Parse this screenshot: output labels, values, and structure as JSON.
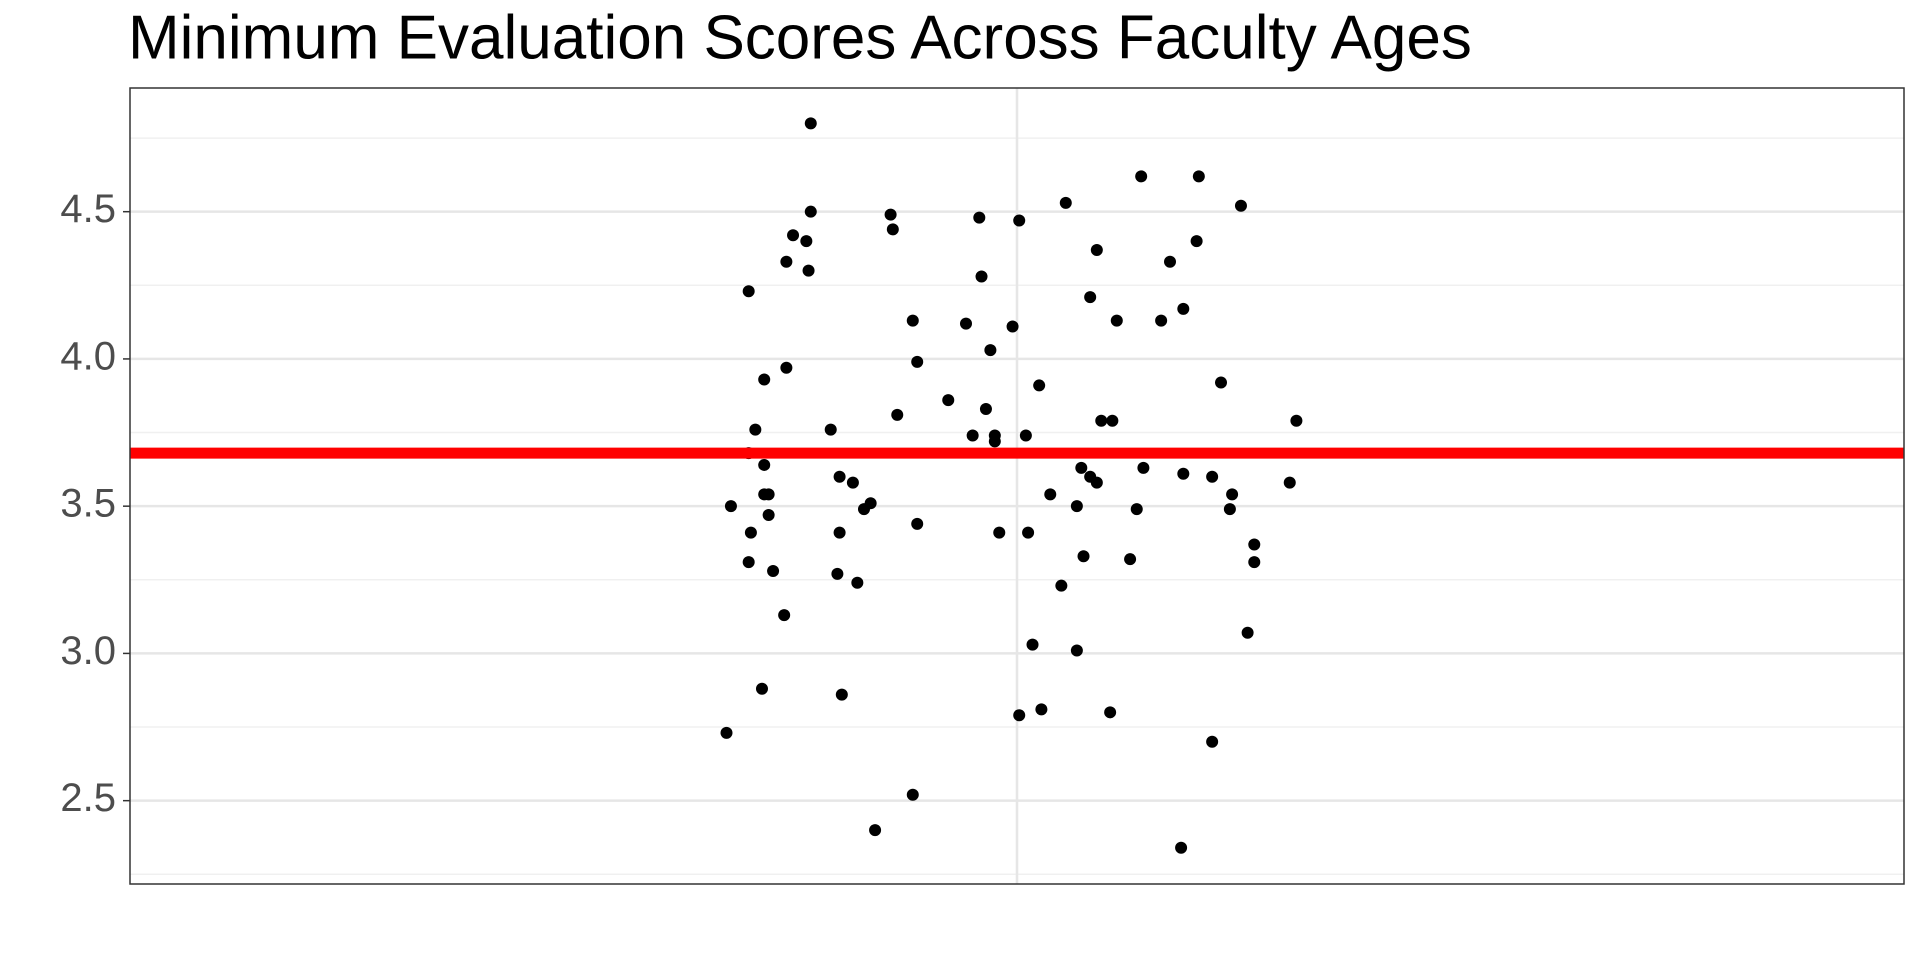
{
  "chart_data": {
    "type": "scatter",
    "title": "Minimum Evaluation Scores Across Faculty Ages",
    "x": [
      0.907,
      0.869,
      0.879,
      0.882,
      0.886,
      0.879,
      0.886,
      0.871,
      0.88,
      0.879,
      0.886,
      0.888,
      0.888,
      0.89,
      0.885,
      0.895,
      0.896,
      0.896,
      0.899,
      0.905,
      0.906,
      0.907,
      0.916,
      0.92,
      0.92,
      0.919,
      0.921,
      0.926,
      0.928,
      0.931,
      0.934,
      0.936,
      0.943,
      0.944,
      0.946,
      0.953,
      0.955,
      0.955,
      0.953,
      0.969,
      0.977,
      0.98,
      0.983,
      0.984,
      0.986,
      0.988,
      0.99,
      0.99,
      0.992,
      0.998,
      1.001,
      1.004,
      1.001,
      1.005,
      1.007,
      1.01,
      1.011,
      1.015,
      1.02,
      1.022,
      1.027,
      1.027,
      1.029,
      1.03,
      1.033,
      1.033,
      1.036,
      1.036,
      1.038,
      1.043,
      1.042,
      1.045,
      1.051,
      1.054,
      1.056,
      1.057,
      1.065,
      1.069,
      1.074,
      1.075,
      1.075,
      1.081,
      1.082,
      1.088,
      1.088,
      1.092,
      1.096,
      1.097,
      1.101,
      1.104,
      1.107,
      1.107,
      1.123,
      1.126
    ],
    "values": [
      4.8,
      2.73,
      4.23,
      3.76,
      3.93,
      3.68,
      3.64,
      3.5,
      3.41,
      3.31,
      3.54,
      3.54,
      3.47,
      3.28,
      2.88,
      3.13,
      3.97,
      4.33,
      4.42,
      4.4,
      4.3,
      4.5,
      3.76,
      3.6,
      3.41,
      3.27,
      2.86,
      3.58,
      3.24,
      3.49,
      3.51,
      2.4,
      4.49,
      4.44,
      3.81,
      4.13,
      3.99,
      3.44,
      2.52,
      3.86,
      4.12,
      3.74,
      4.48,
      4.28,
      3.83,
      4.03,
      3.74,
      3.72,
      3.41,
      4.11,
      4.47,
      3.74,
      2.79,
      3.41,
      3.03,
      3.91,
      2.81,
      3.54,
      3.23,
      4.53,
      3.5,
      3.01,
      3.63,
      3.33,
      4.21,
      3.6,
      4.37,
      3.58,
      3.79,
      3.79,
      2.8,
      4.13,
      3.32,
      3.49,
      4.62,
      3.63,
      4.13,
      4.33,
      2.34,
      4.17,
      3.61,
      4.4,
      4.62,
      3.6,
      2.7,
      3.92,
      3.49,
      3.54,
      4.52,
      3.07,
      3.37,
      3.31,
      3.58,
      3.79
    ],
    "color": "#000000",
    "hline": 3.68,
    "hline_color": "#ff0000",
    "xlim": [
      0.6,
      1.4
    ],
    "xticks": [
      1
    ],
    "ylim": [
      2.217,
      4.92
    ],
    "yticks": [
      2.5,
      {
        "value": 3,
        "label": "3.0"
      },
      3.5,
      {
        "value": 4,
        "label": "4.0"
      },
      4.5
    ],
    "grid": true
  }
}
